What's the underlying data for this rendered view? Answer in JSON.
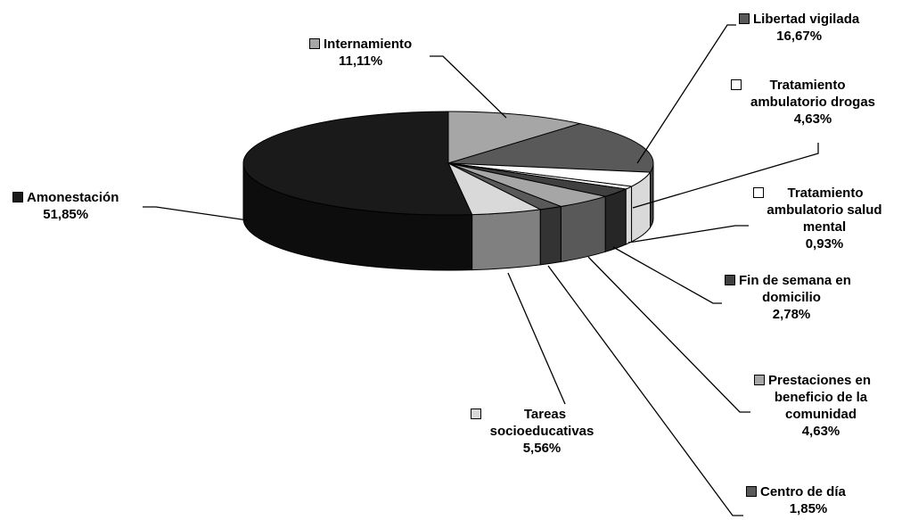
{
  "chart_data": {
    "type": "pie",
    "style": "3d-exploded-style pie, grayscale, leader-line labels",
    "slices": [
      {
        "name": "Internamiento",
        "value": 11.11,
        "label": "11,11%",
        "color": "#a6a6a6",
        "side": "#7f7f7f"
      },
      {
        "name": "Libertad vigilada",
        "value": 16.67,
        "label": "16,67%",
        "color": "#595959",
        "side": "#404040"
      },
      {
        "name": "Tratamiento ambulatorio drogas",
        "value": 4.63,
        "label": "4,63%",
        "color": "#ffffff",
        "side": "#d9d9d9"
      },
      {
        "name": "Tratamiento ambulatorio salud mental",
        "value": 0.93,
        "label": "0,93%",
        "color": "#ffffff",
        "side": "#d9d9d9"
      },
      {
        "name": "Fin de semana en domicilio",
        "value": 2.78,
        "label": "2,78%",
        "color": "#404040",
        "side": "#262626"
      },
      {
        "name": "Prestaciones en beneficio de la comunidad",
        "value": 4.63,
        "label": "4,63%",
        "color": "#a6a6a6",
        "side": "#595959"
      },
      {
        "name": "Centro de día",
        "value": 1.85,
        "label": "1,85%",
        "color": "#595959",
        "side": "#333333"
      },
      {
        "name": "Tareas socioeducativas",
        "value": 5.56,
        "label": "5,56%",
        "color": "#d9d9d9",
        "side": "#808080"
      },
      {
        "name": "Amonestación",
        "value": 51.85,
        "label": "51,85%",
        "color": "#1a1a1a",
        "side": "#0d0d0d"
      }
    ],
    "legend_lines": {
      "Internamiento": [
        "Internamiento"
      ],
      "Libertad vigilada": [
        "Libertad vigilada"
      ],
      "Tratamiento ambulatorio drogas": [
        "Tratamiento",
        "ambulatorio drogas"
      ],
      "Tratamiento ambulatorio salud mental": [
        "Tratamiento",
        "ambulatorio salud",
        "mental"
      ],
      "Fin de semana en domicilio": [
        "Fin de semana en",
        "domicilio"
      ],
      "Prestaciones en beneficio de la comunidad": [
        "Prestaciones en",
        "beneficio de la",
        "comunidad"
      ],
      "Centro de día": [
        "Centro de día"
      ],
      "Tareas socioeducativas": [
        "Tareas",
        "socioeducativas"
      ],
      "Amonestación": [
        "Amonestación"
      ]
    }
  }
}
